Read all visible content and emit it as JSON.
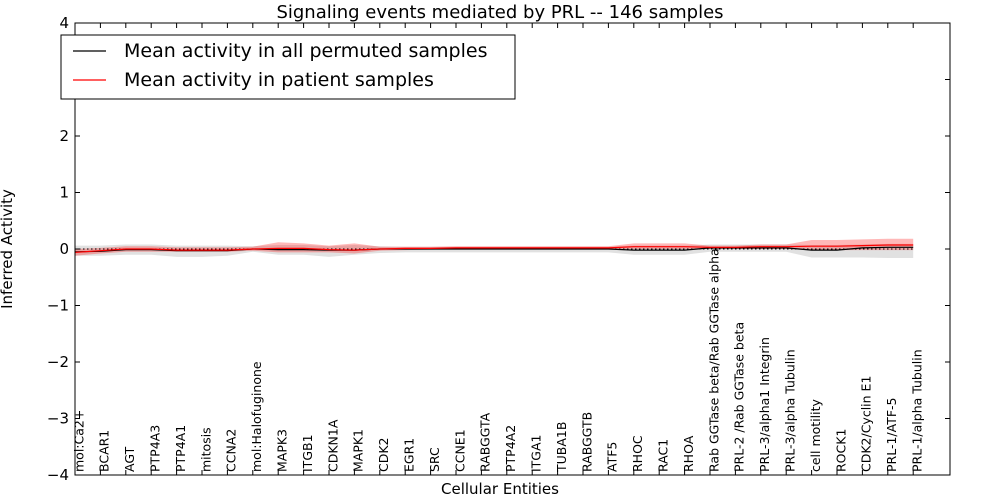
{
  "chart_data": {
    "type": "line",
    "title": "Signaling events mediated by PRL -- 146 samples",
    "xlabel": "Cellular Entities",
    "ylabel": "Inferred Activity",
    "ylim": [
      -4,
      4
    ],
    "yticks": [
      -4,
      -3,
      -2,
      -1,
      0,
      1,
      2,
      3,
      4
    ],
    "ytick_labels": [
      "−4",
      "−3",
      "−2",
      "−1",
      "0",
      "1",
      "2",
      "3",
      "4"
    ],
    "grid": false,
    "legend_position": "top-left",
    "categories": [
      "mol:Ca2+",
      "BCAR1",
      "AGT",
      "PTP4A3",
      "PTP4A1",
      "mitosis",
      "CCNA2",
      "mol:Halofuginone",
      "MAPK3",
      "ITGB1",
      "CDKN1A",
      "MAPK1",
      "CDK2",
      "EGR1",
      "SRC",
      "CCNE1",
      "RABGGTA",
      "PTP4A2",
      "ITGA1",
      "TUBA1B",
      "RABGGTB",
      "ATF5",
      "RHOC",
      "RAC1",
      "RHOA",
      "Rab GGTase beta/Rab GGTase alpha",
      "PRL-2 /Rab GGTase beta",
      "PRL-3/alpha1 Integrin",
      "PRL-3/alpha Tubulin",
      "cell motility",
      "ROCK1",
      "CDK2/Cyclin E1",
      "PRL-1/ATF-5",
      "PRL-1/alpha Tubulin"
    ],
    "series": [
      {
        "name": "Mean activity in all permuted samples",
        "color": "#000000",
        "values": [
          -0.05,
          -0.04,
          -0.01,
          -0.01,
          -0.03,
          -0.03,
          -0.03,
          0.0,
          -0.01,
          -0.01,
          -0.02,
          -0.02,
          0.0,
          0.0,
          0.0,
          0.0,
          0.0,
          0.0,
          0.0,
          0.0,
          0.0,
          0.0,
          -0.02,
          -0.02,
          -0.02,
          0.02,
          0.02,
          0.02,
          0.02,
          -0.02,
          -0.02,
          0.02,
          0.03,
          0.03
        ],
        "band_low": [
          -0.12,
          -0.12,
          -0.1,
          -0.1,
          -0.14,
          -0.14,
          -0.12,
          -0.05,
          -0.1,
          -0.1,
          -0.14,
          -0.1,
          -0.07,
          -0.06,
          -0.06,
          -0.06,
          -0.06,
          -0.06,
          -0.06,
          -0.06,
          -0.06,
          -0.06,
          -0.1,
          -0.1,
          -0.1,
          -0.05,
          -0.05,
          -0.05,
          -0.05,
          -0.15,
          -0.15,
          -0.15,
          -0.16,
          -0.16
        ],
        "band_high": [
          0.06,
          0.06,
          0.08,
          0.08,
          0.06,
          0.06,
          0.06,
          0.05,
          0.07,
          0.07,
          0.05,
          0.07,
          0.05,
          0.04,
          0.04,
          0.04,
          0.04,
          0.04,
          0.04,
          0.04,
          0.04,
          0.04,
          0.06,
          0.06,
          0.06,
          0.08,
          0.08,
          0.08,
          0.08,
          0.07,
          0.07,
          0.08,
          0.09,
          0.09
        ]
      },
      {
        "name": "Mean activity in patient samples",
        "color": "#ff0000",
        "values": [
          -0.06,
          -0.03,
          0.0,
          0.0,
          -0.02,
          -0.02,
          -0.02,
          0.0,
          0.01,
          0.01,
          -0.01,
          -0.02,
          0.0,
          0.01,
          0.01,
          0.02,
          0.02,
          0.02,
          0.02,
          0.02,
          0.02,
          0.02,
          0.04,
          0.04,
          0.04,
          0.03,
          0.03,
          0.04,
          0.04,
          0.05,
          0.05,
          0.06,
          0.07,
          0.07
        ],
        "band_low": [
          -0.12,
          -0.08,
          -0.05,
          -0.05,
          -0.05,
          -0.05,
          -0.05,
          -0.03,
          -0.06,
          -0.06,
          -0.06,
          -0.08,
          -0.03,
          -0.02,
          -0.01,
          0.0,
          0.0,
          0.0,
          0.0,
          0.0,
          0.0,
          0.0,
          0.0,
          0.0,
          0.0,
          0.0,
          0.0,
          0.0,
          0.0,
          -0.02,
          -0.02,
          -0.02,
          -0.02,
          -0.02
        ],
        "band_high": [
          0.0,
          0.02,
          0.05,
          0.05,
          0.03,
          0.03,
          0.03,
          0.04,
          0.12,
          0.1,
          0.06,
          0.1,
          0.04,
          0.04,
          0.04,
          0.05,
          0.05,
          0.05,
          0.05,
          0.05,
          0.05,
          0.05,
          0.1,
          0.1,
          0.1,
          0.06,
          0.06,
          0.08,
          0.08,
          0.16,
          0.16,
          0.17,
          0.18,
          0.18
        ]
      }
    ]
  }
}
